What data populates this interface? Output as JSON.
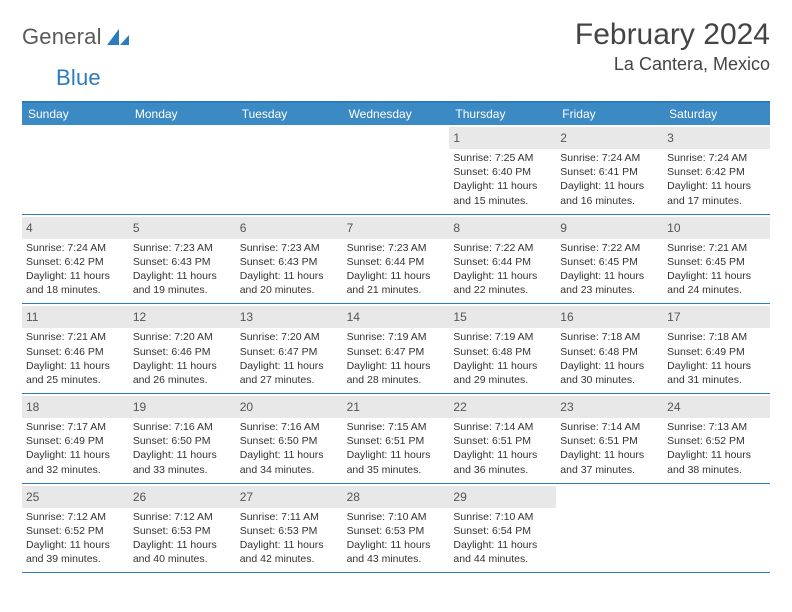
{
  "header": {
    "logo_text_a": "General",
    "logo_text_b": "Blue",
    "title": "February 2024",
    "subtitle": "La Cantera, Mexico"
  },
  "styling": {
    "accent_color": "#3b8ac4",
    "border_color": "#2a7bbf",
    "daynum_bg": "#e8e8e8",
    "background": "#ffffff",
    "text_color": "#333333",
    "title_fontsize": 30,
    "subtitle_fontsize": 18,
    "weekday_fontsize": 12,
    "body_fontsize": 10.5,
    "columns": 7,
    "rows": 5
  },
  "weekdays": [
    "Sunday",
    "Monday",
    "Tuesday",
    "Wednesday",
    "Thursday",
    "Friday",
    "Saturday"
  ],
  "days": [
    {
      "n": "",
      "sr": "",
      "ss": "",
      "dl": ""
    },
    {
      "n": "",
      "sr": "",
      "ss": "",
      "dl": ""
    },
    {
      "n": "",
      "sr": "",
      "ss": "",
      "dl": ""
    },
    {
      "n": "",
      "sr": "",
      "ss": "",
      "dl": ""
    },
    {
      "n": "1",
      "sr": "7:25 AM",
      "ss": "6:40 PM",
      "dl": "11 hours and 15 minutes."
    },
    {
      "n": "2",
      "sr": "7:24 AM",
      "ss": "6:41 PM",
      "dl": "11 hours and 16 minutes."
    },
    {
      "n": "3",
      "sr": "7:24 AM",
      "ss": "6:42 PM",
      "dl": "11 hours and 17 minutes."
    },
    {
      "n": "4",
      "sr": "7:24 AM",
      "ss": "6:42 PM",
      "dl": "11 hours and 18 minutes."
    },
    {
      "n": "5",
      "sr": "7:23 AM",
      "ss": "6:43 PM",
      "dl": "11 hours and 19 minutes."
    },
    {
      "n": "6",
      "sr": "7:23 AM",
      "ss": "6:43 PM",
      "dl": "11 hours and 20 minutes."
    },
    {
      "n": "7",
      "sr": "7:23 AM",
      "ss": "6:44 PM",
      "dl": "11 hours and 21 minutes."
    },
    {
      "n": "8",
      "sr": "7:22 AM",
      "ss": "6:44 PM",
      "dl": "11 hours and 22 minutes."
    },
    {
      "n": "9",
      "sr": "7:22 AM",
      "ss": "6:45 PM",
      "dl": "11 hours and 23 minutes."
    },
    {
      "n": "10",
      "sr": "7:21 AM",
      "ss": "6:45 PM",
      "dl": "11 hours and 24 minutes."
    },
    {
      "n": "11",
      "sr": "7:21 AM",
      "ss": "6:46 PM",
      "dl": "11 hours and 25 minutes."
    },
    {
      "n": "12",
      "sr": "7:20 AM",
      "ss": "6:46 PM",
      "dl": "11 hours and 26 minutes."
    },
    {
      "n": "13",
      "sr": "7:20 AM",
      "ss": "6:47 PM",
      "dl": "11 hours and 27 minutes."
    },
    {
      "n": "14",
      "sr": "7:19 AM",
      "ss": "6:47 PM",
      "dl": "11 hours and 28 minutes."
    },
    {
      "n": "15",
      "sr": "7:19 AM",
      "ss": "6:48 PM",
      "dl": "11 hours and 29 minutes."
    },
    {
      "n": "16",
      "sr": "7:18 AM",
      "ss": "6:48 PM",
      "dl": "11 hours and 30 minutes."
    },
    {
      "n": "17",
      "sr": "7:18 AM",
      "ss": "6:49 PM",
      "dl": "11 hours and 31 minutes."
    },
    {
      "n": "18",
      "sr": "7:17 AM",
      "ss": "6:49 PM",
      "dl": "11 hours and 32 minutes."
    },
    {
      "n": "19",
      "sr": "7:16 AM",
      "ss": "6:50 PM",
      "dl": "11 hours and 33 minutes."
    },
    {
      "n": "20",
      "sr": "7:16 AM",
      "ss": "6:50 PM",
      "dl": "11 hours and 34 minutes."
    },
    {
      "n": "21",
      "sr": "7:15 AM",
      "ss": "6:51 PM",
      "dl": "11 hours and 35 minutes."
    },
    {
      "n": "22",
      "sr": "7:14 AM",
      "ss": "6:51 PM",
      "dl": "11 hours and 36 minutes."
    },
    {
      "n": "23",
      "sr": "7:14 AM",
      "ss": "6:51 PM",
      "dl": "11 hours and 37 minutes."
    },
    {
      "n": "24",
      "sr": "7:13 AM",
      "ss": "6:52 PM",
      "dl": "11 hours and 38 minutes."
    },
    {
      "n": "25",
      "sr": "7:12 AM",
      "ss": "6:52 PM",
      "dl": "11 hours and 39 minutes."
    },
    {
      "n": "26",
      "sr": "7:12 AM",
      "ss": "6:53 PM",
      "dl": "11 hours and 40 minutes."
    },
    {
      "n": "27",
      "sr": "7:11 AM",
      "ss": "6:53 PM",
      "dl": "11 hours and 42 minutes."
    },
    {
      "n": "28",
      "sr": "7:10 AM",
      "ss": "6:53 PM",
      "dl": "11 hours and 43 minutes."
    },
    {
      "n": "29",
      "sr": "7:10 AM",
      "ss": "6:54 PM",
      "dl": "11 hours and 44 minutes."
    },
    {
      "n": "",
      "sr": "",
      "ss": "",
      "dl": ""
    },
    {
      "n": "",
      "sr": "",
      "ss": "",
      "dl": ""
    }
  ],
  "labels": {
    "sunrise": "Sunrise: ",
    "sunset": "Sunset: ",
    "daylight": "Daylight: "
  }
}
